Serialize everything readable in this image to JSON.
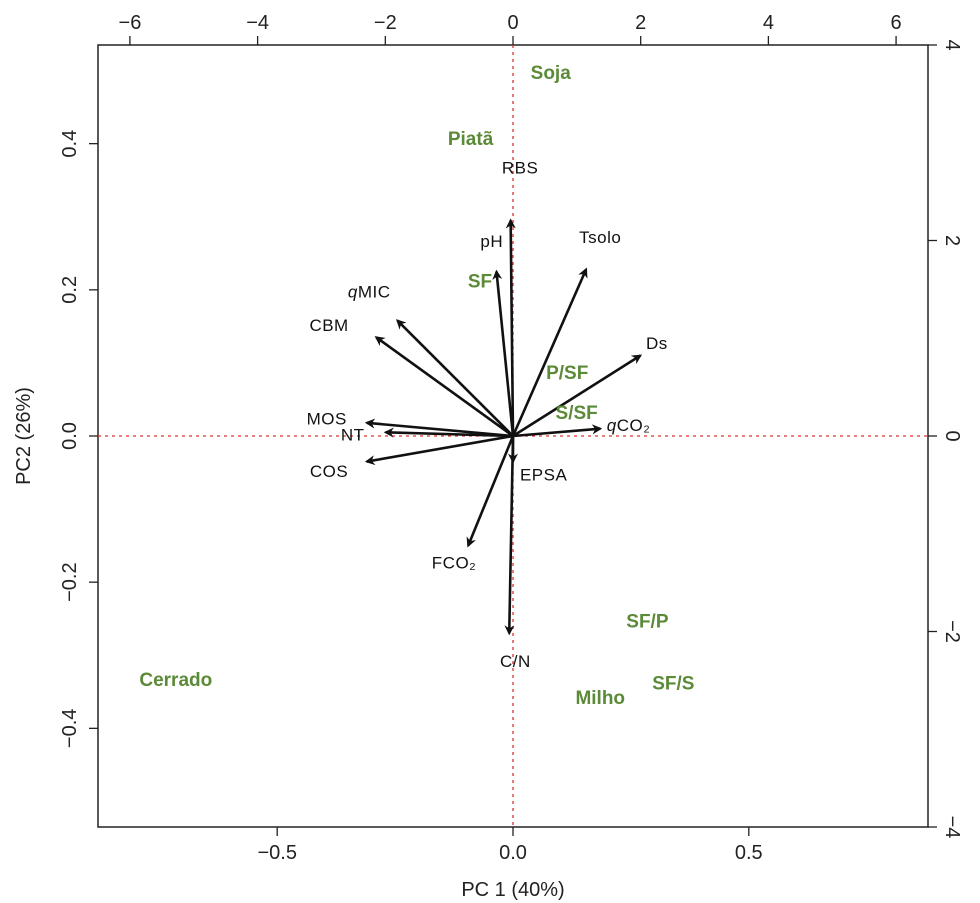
{
  "chart_data": {
    "type": "scatter",
    "subtype": "biplot",
    "xlabel": "PC 1 (40%)",
    "ylabel": "PC2 (26%)",
    "xlim": [
      -0.88,
      0.88
    ],
    "ylim": [
      -0.535,
      0.535
    ],
    "x_ticks": [
      "-0.5",
      "0.0",
      "0.5"
    ],
    "x_tick_values": [
      -0.5,
      0.0,
      0.5
    ],
    "y_ticks": [
      "-0.4",
      "-0.2",
      "0.0",
      "0.2",
      "0.4"
    ],
    "y_tick_values": [
      -0.4,
      -0.2,
      0.0,
      0.2,
      0.4
    ],
    "top_axis": {
      "lim": [
        -6.5,
        6.5
      ],
      "ticks": [
        "-6",
        "-4",
        "-2",
        "0",
        "2",
        "4",
        "6"
      ],
      "tick_values": [
        -6,
        -4,
        -2,
        0,
        2,
        4,
        6
      ]
    },
    "right_axis": {
      "lim": [
        -4.0,
        4.0
      ],
      "ticks": [
        "-4",
        "-2",
        "0",
        "2",
        "4"
      ],
      "tick_values": [
        -4,
        -2,
        0,
        2,
        4
      ]
    },
    "reference_lines": {
      "x": 0,
      "y": 0,
      "style": "dotted",
      "color": "#e03030"
    },
    "loadings": [
      {
        "name": "RBS",
        "label": "RBS",
        "x": -0.005,
        "y": 0.295,
        "lx": 0.015,
        "ly": 0.365
      },
      {
        "name": "pH",
        "label": "pH",
        "x": -0.035,
        "y": 0.225,
        "lx": -0.045,
        "ly": 0.265
      },
      {
        "name": "Tsolo",
        "label": "Tsolo",
        "x": 0.155,
        "y": 0.228,
        "lx": 0.185,
        "ly": 0.27
      },
      {
        "name": "Ds",
        "label": "Ds",
        "x": 0.27,
        "y": 0.11,
        "lx": 0.305,
        "ly": 0.125
      },
      {
        "name": "qCO2",
        "label": "qCO₂",
        "x": 0.185,
        "y": 0.01,
        "lx": 0.245,
        "ly": 0.012
      },
      {
        "name": "qMIC",
        "label": "qMIC",
        "x": -0.245,
        "y": 0.158,
        "lx": -0.305,
        "ly": 0.195
      },
      {
        "name": "CBM",
        "label": "CBM",
        "x": -0.29,
        "y": 0.135,
        "lx": -0.39,
        "ly": 0.15
      },
      {
        "name": "MOS",
        "label": "MOS",
        "x": -0.31,
        "y": 0.018,
        "lx": -0.395,
        "ly": 0.022
      },
      {
        "name": "NT",
        "label": "NT",
        "x": -0.27,
        "y": 0.005,
        "lx": -0.34,
        "ly": 0.0
      },
      {
        "name": "COS",
        "label": "COS",
        "x": -0.31,
        "y": -0.035,
        "lx": -0.39,
        "ly": -0.05
      },
      {
        "name": "EPSA",
        "label": "EPSA",
        "x": 0.0,
        "y": -0.035,
        "lx": 0.065,
        "ly": -0.055
      },
      {
        "name": "FCO2",
        "label": "FCO₂",
        "x": -0.095,
        "y": -0.15,
        "lx": -0.125,
        "ly": -0.175
      },
      {
        "name": "CN",
        "label": "C/N",
        "x": -0.008,
        "y": -0.27,
        "lx": 0.005,
        "ly": -0.31
      }
    ],
    "scores": [
      {
        "name": "Soja",
        "x": 0.08,
        "y": 0.495
      },
      {
        "name": "Piatã",
        "x": -0.09,
        "y": 0.405
      },
      {
        "name": "SF",
        "x": -0.07,
        "y": 0.21
      },
      {
        "name": "P/SF",
        "x": 0.115,
        "y": 0.085
      },
      {
        "name": "S/SF",
        "x": 0.135,
        "y": 0.03
      },
      {
        "name": "SF/P",
        "x": 0.285,
        "y": -0.255
      },
      {
        "name": "SF/S",
        "x": 0.34,
        "y": -0.34
      },
      {
        "name": "Milho",
        "x": 0.185,
        "y": -0.36
      },
      {
        "name": "Cerrado",
        "x": -0.715,
        "y": -0.335
      }
    ],
    "colors": {
      "arrows": "#111111",
      "variables": "#111111",
      "sites": "#5b8a38",
      "reference": "#e03030"
    }
  }
}
